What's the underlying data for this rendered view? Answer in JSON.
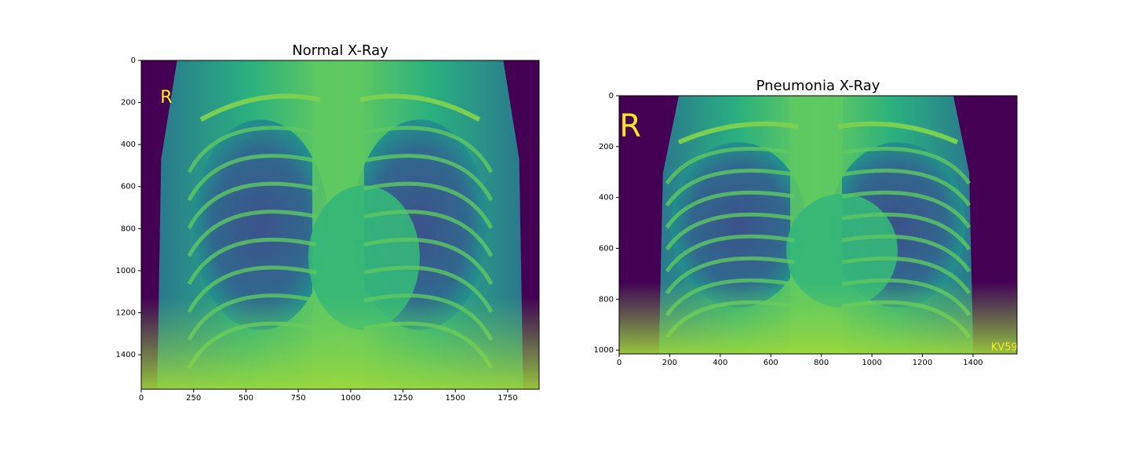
{
  "chart_data": [
    {
      "type": "image",
      "title": "Normal X-Ray",
      "annotations": [
        "R"
      ],
      "xlim": [
        0,
        1900
      ],
      "ylim": [
        1564,
        0
      ],
      "xticks": [
        0,
        250,
        500,
        750,
        1000,
        1250,
        1500,
        1750
      ],
      "yticks": [
        0,
        200,
        400,
        600,
        800,
        1000,
        1200,
        1400
      ]
    },
    {
      "type": "image",
      "title": "Pneumonia X-Ray",
      "annotations": [
        "R",
        "KV59"
      ],
      "xlim": [
        0,
        1574
      ],
      "ylim": [
        1015,
        0
      ],
      "xticks": [
        0,
        200,
        400,
        600,
        800,
        1000,
        1200,
        1400
      ],
      "yticks": [
        0,
        200,
        400,
        600,
        800,
        1000
      ]
    }
  ]
}
